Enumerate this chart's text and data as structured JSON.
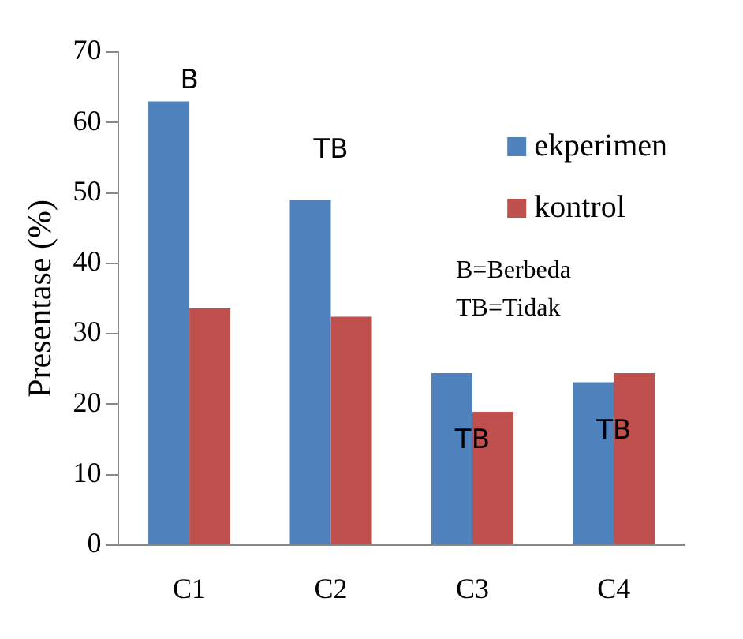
{
  "chart_data": {
    "type": "bar",
    "ylabel": "Presentase (%)",
    "categories": [
      "C1",
      "C2",
      "C3",
      "C4"
    ],
    "series": [
      {
        "name": "ekperimen",
        "color": "#4f81bd",
        "values": [
          63,
          49,
          24.4,
          23.1
        ]
      },
      {
        "name": "kontrol",
        "color": "#c0504d",
        "values": [
          33.6,
          32.4,
          18.9,
          24.4
        ]
      }
    ],
    "ylim": [
      0,
      70
    ],
    "yticks": [
      0,
      10,
      20,
      30,
      40,
      50,
      60,
      70
    ],
    "grid": false,
    "legend": "top right",
    "annotations": [
      "B",
      "TB",
      "TB",
      "TB",
      "B=Berbeda",
      "TB=Tidak"
    ]
  }
}
